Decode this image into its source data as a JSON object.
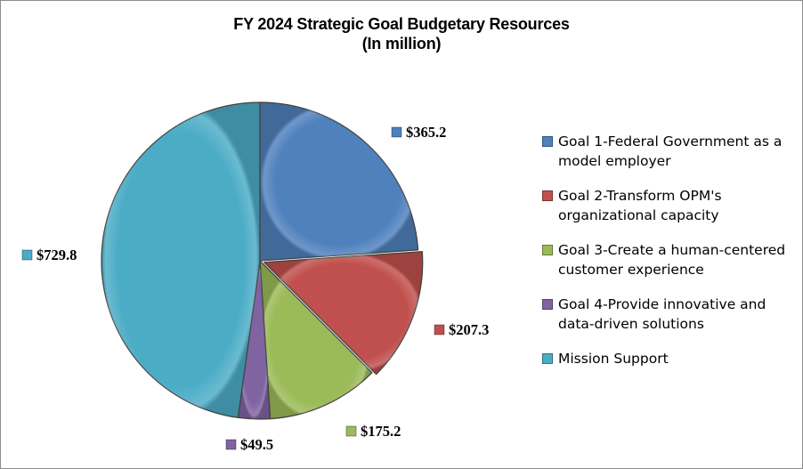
{
  "chart_data": {
    "type": "pie",
    "title": "FY 2024 Strategic Goal Budgetary Resources",
    "subtitle": "(In million)",
    "categories": [
      "Goal 1-Federal Government as a model employer",
      "Goal 2-Transform OPM's organizational capacity",
      "Goal 3-Create a human-centered customer experience",
      "Goal 4-Provide innovative and data-driven solutions",
      "Mission Support"
    ],
    "values": [
      365.2,
      207.3,
      175.2,
      49.5,
      729.8
    ],
    "data_labels": [
      "$365.2",
      "$207.3",
      "$175.2",
      "$49.5",
      "$729.8"
    ],
    "colors": [
      "#4f81bd",
      "#c0504d",
      "#9bbb59",
      "#8064a2",
      "#4bacc6"
    ],
    "legend_position": "right",
    "exploded": [
      "Goal 2-Transform OPM's organizational capacity"
    ]
  },
  "legend": {
    "items": [
      [
        "Goal 1-Federal Government as a",
        "model employer"
      ],
      [
        "Goal 2-Transform OPM's",
        "organizational capacity"
      ],
      [
        "Goal 3-Create a human-centered",
        "customer experience"
      ],
      [
        "Goal 4-Provide innovative and",
        "data-driven solutions"
      ],
      [
        "Mission Support"
      ]
    ]
  }
}
